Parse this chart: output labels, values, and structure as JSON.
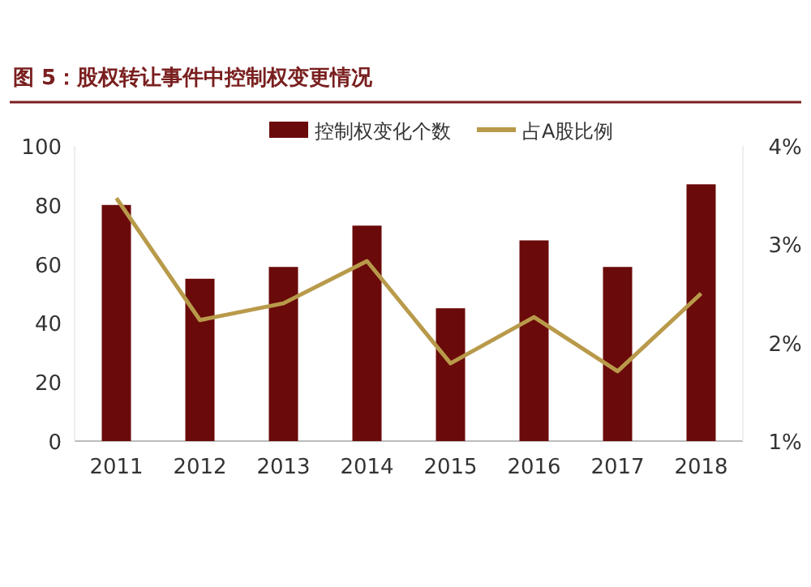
{
  "chart_data": {
    "type": "bar",
    "title": "图 5：股权转让事件中控制权变更情况",
    "categories": [
      "2011",
      "2012",
      "2013",
      "2014",
      "2015",
      "2016",
      "2017",
      "2018"
    ],
    "series": [
      {
        "name": "控制权变化个数",
        "color": "#6b0a0a",
        "values": [
          80,
          55,
          59,
          73,
          45,
          68,
          59,
          87
        ]
      },
      {
        "name": "占A股比例",
        "type": "line",
        "axis": "y2",
        "color": "#b89a4a",
        "values": [
          3.47,
          2.23,
          2.4,
          2.83,
          1.79,
          2.26,
          1.71,
          2.5
        ]
      }
    ],
    "ylim": [
      0,
      100
    ],
    "yticks": [
      0,
      20,
      40,
      60,
      80,
      100
    ],
    "y2lim": [
      1,
      4
    ],
    "y2ticks": [
      {
        "value": 1,
        "label": "1%"
      },
      {
        "value": 2,
        "label": "2%"
      },
      {
        "value": 3,
        "label": "3%"
      },
      {
        "value": 4,
        "label": "4%"
      }
    ],
    "legend": "top"
  }
}
